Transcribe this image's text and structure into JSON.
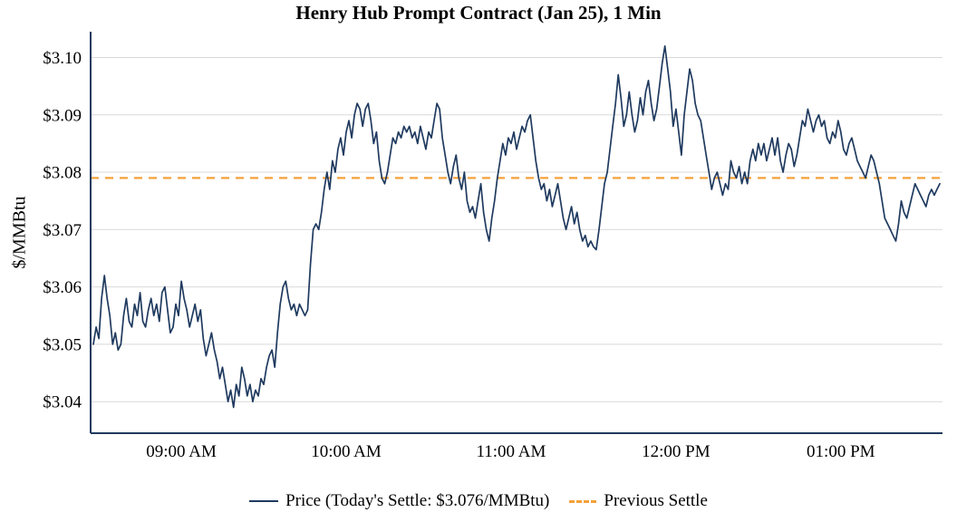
{
  "title": "Henry Hub Prompt Contract (Jan 25), 1 Min",
  "colors": {
    "price_line": "#1f3a5f",
    "previous_settle": "#f5a13a",
    "grid": "#d9d9d9",
    "axis": "#1f3a5f",
    "text": "#000000"
  },
  "legend": {
    "price_label": "Price (Today's Settle: $3.076/MMBtu)",
    "previous_settle_label": "Previous Settle"
  },
  "chart_data": {
    "type": "line",
    "title": "Henry Hub Prompt Contract (Jan 25), 1 Min",
    "xlabel": "",
    "ylabel": "$/MMBtu",
    "x_unit": "minutes_since_midnight",
    "xlim": [
      507,
      817
    ],
    "ylim": [
      3.0345,
      3.1045
    ],
    "grid": "horizontal",
    "legend_position": "bottom",
    "todays_settle": 3.076,
    "previous_settle": 3.079,
    "y_ticks": [
      3.04,
      3.05,
      3.06,
      3.07,
      3.08,
      3.09,
      3.1
    ],
    "y_tick_prefix": "$",
    "x_ticks": [
      {
        "t": 540,
        "label": "09:00 AM"
      },
      {
        "t": 600,
        "label": "10:00 AM"
      },
      {
        "t": 660,
        "label": "11:00 AM"
      },
      {
        "t": 720,
        "label": "12:00 PM"
      },
      {
        "t": 780,
        "label": "01:00 PM"
      }
    ],
    "series": [
      {
        "name": "Price",
        "points": [
          [
            508,
            3.05
          ],
          [
            509,
            3.053
          ],
          [
            510,
            3.051
          ],
          [
            511,
            3.058
          ],
          [
            512,
            3.062
          ],
          [
            513,
            3.058
          ],
          [
            514,
            3.055
          ],
          [
            515,
            3.05
          ],
          [
            516,
            3.052
          ],
          [
            517,
            3.049
          ],
          [
            518,
            3.05
          ],
          [
            519,
            3.055
          ],
          [
            520,
            3.058
          ],
          [
            521,
            3.054
          ],
          [
            522,
            3.053
          ],
          [
            523,
            3.057
          ],
          [
            524,
            3.055
          ],
          [
            525,
            3.059
          ],
          [
            526,
            3.054
          ],
          [
            527,
            3.053
          ],
          [
            528,
            3.056
          ],
          [
            529,
            3.058
          ],
          [
            530,
            3.055
          ],
          [
            531,
            3.057
          ],
          [
            532,
            3.054
          ],
          [
            533,
            3.059
          ],
          [
            534,
            3.06
          ],
          [
            535,
            3.056
          ],
          [
            536,
            3.052
          ],
          [
            537,
            3.053
          ],
          [
            538,
            3.057
          ],
          [
            539,
            3.055
          ],
          [
            540,
            3.061
          ],
          [
            541,
            3.058
          ],
          [
            542,
            3.056
          ],
          [
            543,
            3.053
          ],
          [
            544,
            3.055
          ],
          [
            545,
            3.057
          ],
          [
            546,
            3.054
          ],
          [
            547,
            3.056
          ],
          [
            548,
            3.051
          ],
          [
            549,
            3.048
          ],
          [
            550,
            3.05
          ],
          [
            551,
            3.052
          ],
          [
            552,
            3.049
          ],
          [
            553,
            3.047
          ],
          [
            554,
            3.044
          ],
          [
            555,
            3.046
          ],
          [
            556,
            3.043
          ],
          [
            557,
            3.04
          ],
          [
            558,
            3.042
          ],
          [
            559,
            3.039
          ],
          [
            560,
            3.043
          ],
          [
            561,
            3.041
          ],
          [
            562,
            3.046
          ],
          [
            563,
            3.044
          ],
          [
            564,
            3.041
          ],
          [
            565,
            3.043
          ],
          [
            566,
            3.04
          ],
          [
            567,
            3.042
          ],
          [
            568,
            3.041
          ],
          [
            569,
            3.044
          ],
          [
            570,
            3.043
          ],
          [
            571,
            3.046
          ],
          [
            572,
            3.048
          ],
          [
            573,
            3.049
          ],
          [
            574,
            3.046
          ],
          [
            575,
            3.052
          ],
          [
            576,
            3.057
          ],
          [
            577,
            3.06
          ],
          [
            578,
            3.061
          ],
          [
            579,
            3.058
          ],
          [
            580,
            3.056
          ],
          [
            581,
            3.057
          ],
          [
            582,
            3.055
          ],
          [
            583,
            3.057
          ],
          [
            584,
            3.056
          ],
          [
            585,
            3.055
          ],
          [
            586,
            3.056
          ],
          [
            587,
            3.064
          ],
          [
            588,
            3.07
          ],
          [
            589,
            3.071
          ],
          [
            590,
            3.07
          ],
          [
            591,
            3.073
          ],
          [
            592,
            3.077
          ],
          [
            593,
            3.08
          ],
          [
            594,
            3.077
          ],
          [
            595,
            3.082
          ],
          [
            596,
            3.08
          ],
          [
            597,
            3.084
          ],
          [
            598,
            3.086
          ],
          [
            599,
            3.083
          ],
          [
            600,
            3.087
          ],
          [
            601,
            3.089
          ],
          [
            602,
            3.086
          ],
          [
            603,
            3.09
          ],
          [
            604,
            3.092
          ],
          [
            605,
            3.091
          ],
          [
            606,
            3.088
          ],
          [
            607,
            3.091
          ],
          [
            608,
            3.092
          ],
          [
            609,
            3.089
          ],
          [
            610,
            3.085
          ],
          [
            611,
            3.087
          ],
          [
            612,
            3.082
          ],
          [
            613,
            3.079
          ],
          [
            614,
            3.078
          ],
          [
            615,
            3.08
          ],
          [
            616,
            3.083
          ],
          [
            617,
            3.086
          ],
          [
            618,
            3.085
          ],
          [
            619,
            3.087
          ],
          [
            620,
            3.086
          ],
          [
            621,
            3.088
          ],
          [
            622,
            3.087
          ],
          [
            623,
            3.088
          ],
          [
            624,
            3.086
          ],
          [
            625,
            3.087
          ],
          [
            626,
            3.085
          ],
          [
            627,
            3.088
          ],
          [
            628,
            3.086
          ],
          [
            629,
            3.084
          ],
          [
            630,
            3.087
          ],
          [
            631,
            3.086
          ],
          [
            632,
            3.089
          ],
          [
            633,
            3.092
          ],
          [
            634,
            3.091
          ],
          [
            635,
            3.086
          ],
          [
            636,
            3.083
          ],
          [
            637,
            3.08
          ],
          [
            638,
            3.078
          ],
          [
            639,
            3.081
          ],
          [
            640,
            3.083
          ],
          [
            641,
            3.079
          ],
          [
            642,
            3.077
          ],
          [
            643,
            3.08
          ],
          [
            644,
            3.075
          ],
          [
            645,
            3.073
          ],
          [
            646,
            3.074
          ],
          [
            647,
            3.072
          ],
          [
            648,
            3.075
          ],
          [
            649,
            3.078
          ],
          [
            650,
            3.073
          ],
          [
            651,
            3.07
          ],
          [
            652,
            3.068
          ],
          [
            653,
            3.072
          ],
          [
            654,
            3.075
          ],
          [
            655,
            3.079
          ],
          [
            656,
            3.082
          ],
          [
            657,
            3.085
          ],
          [
            658,
            3.083
          ],
          [
            659,
            3.086
          ],
          [
            660,
            3.085
          ],
          [
            661,
            3.087
          ],
          [
            662,
            3.084
          ],
          [
            663,
            3.086
          ],
          [
            664,
            3.088
          ],
          [
            665,
            3.087
          ],
          [
            666,
            3.089
          ],
          [
            667,
            3.09
          ],
          [
            668,
            3.086
          ],
          [
            669,
            3.082
          ],
          [
            670,
            3.079
          ],
          [
            671,
            3.077
          ],
          [
            672,
            3.078
          ],
          [
            673,
            3.075
          ],
          [
            674,
            3.077
          ],
          [
            675,
            3.074
          ],
          [
            676,
            3.076
          ],
          [
            677,
            3.078
          ],
          [
            678,
            3.075
          ],
          [
            679,
            3.072
          ],
          [
            680,
            3.07
          ],
          [
            681,
            3.072
          ],
          [
            682,
            3.074
          ],
          [
            683,
            3.071
          ],
          [
            684,
            3.073
          ],
          [
            685,
            3.07
          ],
          [
            686,
            3.068
          ],
          [
            687,
            3.069
          ],
          [
            688,
            3.067
          ],
          [
            689,
            3.068
          ],
          [
            690,
            3.067
          ],
          [
            691,
            3.0665
          ],
          [
            692,
            3.07
          ],
          [
            693,
            3.074
          ],
          [
            694,
            3.078
          ],
          [
            695,
            3.08
          ],
          [
            696,
            3.084
          ],
          [
            697,
            3.088
          ],
          [
            698,
            3.092
          ],
          [
            699,
            3.097
          ],
          [
            700,
            3.093
          ],
          [
            701,
            3.088
          ],
          [
            702,
            3.09
          ],
          [
            703,
            3.094
          ],
          [
            704,
            3.09
          ],
          [
            705,
            3.087
          ],
          [
            706,
            3.089
          ],
          [
            707,
            3.093
          ],
          [
            708,
            3.09
          ],
          [
            709,
            3.094
          ],
          [
            710,
            3.096
          ],
          [
            711,
            3.092
          ],
          [
            712,
            3.089
          ],
          [
            713,
            3.091
          ],
          [
            714,
            3.095
          ],
          [
            715,
            3.099
          ],
          [
            716,
            3.102
          ],
          [
            717,
            3.098
          ],
          [
            718,
            3.094
          ],
          [
            719,
            3.088
          ],
          [
            720,
            3.091
          ],
          [
            721,
            3.087
          ],
          [
            722,
            3.083
          ],
          [
            723,
            3.09
          ],
          [
            724,
            3.094
          ],
          [
            725,
            3.098
          ],
          [
            726,
            3.096
          ],
          [
            727,
            3.092
          ],
          [
            728,
            3.09
          ],
          [
            729,
            3.089
          ],
          [
            730,
            3.086
          ],
          [
            731,
            3.083
          ],
          [
            732,
            3.08
          ],
          [
            733,
            3.077
          ],
          [
            734,
            3.079
          ],
          [
            735,
            3.08
          ],
          [
            736,
            3.078
          ],
          [
            737,
            3.076
          ],
          [
            738,
            3.078
          ],
          [
            739,
            3.077
          ],
          [
            740,
            3.082
          ],
          [
            741,
            3.08
          ],
          [
            742,
            3.079
          ],
          [
            743,
            3.081
          ],
          [
            744,
            3.078
          ],
          [
            745,
            3.08
          ],
          [
            746,
            3.078
          ],
          [
            747,
            3.082
          ],
          [
            748,
            3.084
          ],
          [
            749,
            3.082
          ],
          [
            750,
            3.085
          ],
          [
            751,
            3.083
          ],
          [
            752,
            3.085
          ],
          [
            753,
            3.082
          ],
          [
            754,
            3.084
          ],
          [
            755,
            3.086
          ],
          [
            756,
            3.083
          ],
          [
            757,
            3.086
          ],
          [
            758,
            3.082
          ],
          [
            759,
            3.08
          ],
          [
            760,
            3.083
          ],
          [
            761,
            3.085
          ],
          [
            762,
            3.084
          ],
          [
            763,
            3.081
          ],
          [
            764,
            3.083
          ],
          [
            765,
            3.086
          ],
          [
            766,
            3.089
          ],
          [
            767,
            3.088
          ],
          [
            768,
            3.091
          ],
          [
            769,
            3.089
          ],
          [
            770,
            3.087
          ],
          [
            771,
            3.089
          ],
          [
            772,
            3.09
          ],
          [
            773,
            3.088
          ],
          [
            774,
            3.089
          ],
          [
            775,
            3.086
          ],
          [
            776,
            3.085
          ],
          [
            777,
            3.087
          ],
          [
            778,
            3.086
          ],
          [
            779,
            3.089
          ],
          [
            780,
            3.087
          ],
          [
            781,
            3.084
          ],
          [
            782,
            3.083
          ],
          [
            783,
            3.085
          ],
          [
            784,
            3.086
          ],
          [
            785,
            3.084
          ],
          [
            786,
            3.082
          ],
          [
            787,
            3.081
          ],
          [
            788,
            3.08
          ],
          [
            789,
            3.079
          ],
          [
            790,
            3.081
          ],
          [
            791,
            3.083
          ],
          [
            792,
            3.082
          ],
          [
            793,
            3.08
          ],
          [
            794,
            3.078
          ],
          [
            795,
            3.075
          ],
          [
            796,
            3.072
          ],
          [
            797,
            3.071
          ],
          [
            798,
            3.07
          ],
          [
            799,
            3.069
          ],
          [
            800,
            3.068
          ],
          [
            801,
            3.071
          ],
          [
            802,
            3.075
          ],
          [
            803,
            3.073
          ],
          [
            804,
            3.072
          ],
          [
            805,
            3.074
          ],
          [
            806,
            3.076
          ],
          [
            807,
            3.078
          ],
          [
            808,
            3.077
          ],
          [
            809,
            3.076
          ],
          [
            810,
            3.075
          ],
          [
            811,
            3.074
          ],
          [
            812,
            3.076
          ],
          [
            813,
            3.077
          ],
          [
            814,
            3.076
          ],
          [
            815,
            3.077
          ],
          [
            816,
            3.078
          ]
        ]
      }
    ]
  }
}
